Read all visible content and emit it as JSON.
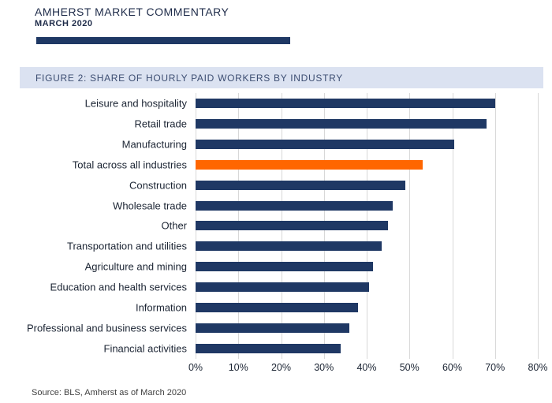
{
  "header": {
    "title": "AMHERST MARKET COMMENTARY",
    "subtitle": "MARCH 2020"
  },
  "figure": {
    "title": "FIGURE 2: SHARE OF HOURLY PAID WORKERS BY INDUSTRY"
  },
  "source": {
    "text": "Source: BLS, Amherst as of March 2020"
  },
  "colors": {
    "bar": "#1F3864",
    "highlight": "#FF6600",
    "header_rule": "#1F3864",
    "figure_band_bg": "#DBE2F1",
    "gridline": "#D8D8D8"
  },
  "chart_data": {
    "type": "bar",
    "orientation": "horizontal",
    "title": "FIGURE 2: SHARE OF HOURLY PAID WORKERS BY INDUSTRY",
    "xlabel": "",
    "ylabel": "",
    "xlim": [
      0,
      80
    ],
    "unit": "%",
    "grid": true,
    "legend": null,
    "categories": [
      "Leisure and hospitality",
      "Retail trade",
      "Manufacturing",
      "Total across all industries",
      "Construction",
      "Wholesale trade",
      "Other",
      "Transportation and utilities",
      "Agriculture and mining",
      "Education and health services",
      "Information",
      "Professional and business services",
      "Financial activities"
    ],
    "values": [
      70,
      68,
      60.5,
      53,
      49,
      46,
      45,
      43.5,
      41.5,
      40.5,
      38,
      36,
      34
    ],
    "highlight_index": 3,
    "highlight_category": "Total across all industries",
    "bar_color": "#1F3864",
    "highlight_color": "#FF6600",
    "x_ticks": [
      "0%",
      "10%",
      "20%",
      "30%",
      "40%",
      "50%",
      "60%",
      "70%",
      "80%"
    ]
  }
}
